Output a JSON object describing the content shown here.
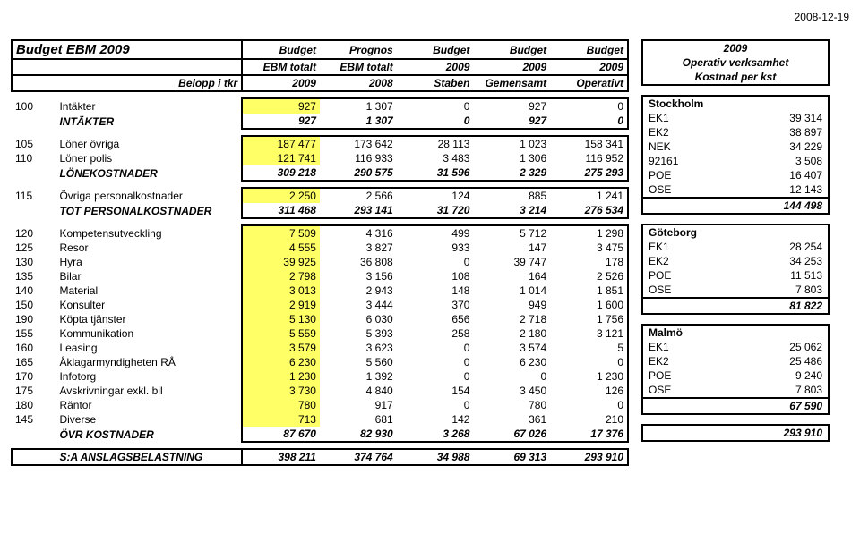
{
  "date": "2008-12-19",
  "main": {
    "header": {
      "title": "Budget EBM 2009",
      "sub": "Belopp i tkr",
      "cols": [
        {
          "l1": "Budget",
          "l2": "EBM totalt",
          "l3": "2009"
        },
        {
          "l1": "Prognos",
          "l2": "EBM totalt",
          "l3": "2008"
        },
        {
          "l1": "Budget",
          "l2": "2009",
          "l3": "Staben"
        },
        {
          "l1": "Budget",
          "l2": "2009",
          "l3": "Gemensamt"
        },
        {
          "l1": "Budget",
          "l2": "2009",
          "l3": "Operativt"
        }
      ]
    },
    "block1": [
      {
        "code": "100",
        "desc": "Intäkter",
        "hl": true,
        "v": [
          "927",
          "1 307",
          "0",
          "927",
          "0"
        ]
      },
      {
        "code": "",
        "desc": "INTÄKTER",
        "bi": true,
        "v": [
          "927",
          "1 307",
          "0",
          "927",
          "0"
        ]
      }
    ],
    "block2": [
      {
        "code": "105",
        "desc": "Löner övriga",
        "hl": true,
        "v": [
          "187 477",
          "173 642",
          "28 113",
          "1 023",
          "158 341"
        ]
      },
      {
        "code": "110",
        "desc": "Löner polis",
        "hl": true,
        "v": [
          "121 741",
          "116 933",
          "3 483",
          "1 306",
          "116 952"
        ]
      },
      {
        "code": "",
        "desc": "LÖNEKOSTNADER",
        "bi": true,
        "v": [
          "309 218",
          "290 575",
          "31 596",
          "2 329",
          "275 293"
        ]
      }
    ],
    "block3": [
      {
        "code": "115",
        "desc": "Övriga personalkostnader",
        "hl": true,
        "v": [
          "2 250",
          "2 566",
          "124",
          "885",
          "1 241"
        ]
      },
      {
        "code": "",
        "desc": "TOT PERSONALKOSTNADER",
        "bi": true,
        "v": [
          "311 468",
          "293 141",
          "31 720",
          "3 214",
          "276 534"
        ]
      }
    ],
    "block4": [
      {
        "code": "120",
        "desc": "Kompetensutveckling",
        "hl": true,
        "v": [
          "7 509",
          "4 316",
          "499",
          "5 712",
          "1 298"
        ]
      },
      {
        "code": "125",
        "desc": "Resor",
        "hl": true,
        "v": [
          "4 555",
          "3 827",
          "933",
          "147",
          "3 475"
        ]
      },
      {
        "code": "130",
        "desc": "Hyra",
        "hl": true,
        "v": [
          "39 925",
          "36 808",
          "0",
          "39 747",
          "178"
        ]
      },
      {
        "code": "135",
        "desc": "Bilar",
        "hl": true,
        "v": [
          "2 798",
          "3 156",
          "108",
          "164",
          "2 526"
        ]
      },
      {
        "code": "140",
        "desc": "Material",
        "hl": true,
        "v": [
          "3 013",
          "2 943",
          "148",
          "1 014",
          "1 851"
        ]
      },
      {
        "code": "150",
        "desc": "Konsulter",
        "hl": true,
        "v": [
          "2 919",
          "3 444",
          "370",
          "949",
          "1 600"
        ]
      },
      {
        "code": "190",
        "desc": "Köpta tjänster",
        "hl": true,
        "v": [
          "5 130",
          "6 030",
          "656",
          "2 718",
          "1 756"
        ]
      },
      {
        "code": "155",
        "desc": "Kommunikation",
        "hl": true,
        "v": [
          "5 559",
          "5 393",
          "258",
          "2 180",
          "3 121"
        ]
      },
      {
        "code": "160",
        "desc": "Leasing",
        "hl": true,
        "v": [
          "3 579",
          "3 623",
          "0",
          "3 574",
          "5"
        ]
      },
      {
        "code": "165",
        "desc": "Åklagarmyndigheten RÅ",
        "hl": true,
        "v": [
          "6 230",
          "5 560",
          "0",
          "6 230",
          "0"
        ]
      },
      {
        "code": "170",
        "desc": "Infotorg",
        "hl": true,
        "v": [
          "1 230",
          "1 392",
          "0",
          "0",
          "1 230"
        ]
      },
      {
        "code": "175",
        "desc": "Avskrivningar exkl. bil",
        "hl": true,
        "v": [
          "3 730",
          "4 840",
          "154",
          "3 450",
          "126"
        ]
      },
      {
        "code": "180",
        "desc": "Räntor",
        "hl": true,
        "v": [
          "780",
          "917",
          "0",
          "780",
          "0"
        ]
      },
      {
        "code": "145",
        "desc": "Diverse",
        "hl": true,
        "v": [
          "713",
          "681",
          "142",
          "361",
          "210"
        ]
      },
      {
        "code": "",
        "desc": "ÖVR KOSTNADER",
        "bi": true,
        "v": [
          "87 670",
          "82 930",
          "3 268",
          "67 026",
          "17 376"
        ]
      }
    ],
    "total": {
      "desc": "S:A ANSLAGSBELASTNING",
      "v": [
        "398 211",
        "374 764",
        "34 988",
        "69 313",
        "293 910"
      ]
    }
  },
  "side": {
    "header": {
      "l1": "2009",
      "l2": "Operativ verksamhet",
      "l3": "Kostnad per kst"
    },
    "groups": [
      {
        "region": "Stockholm",
        "rows": [
          [
            "EK1",
            "39 314"
          ],
          [
            "EK2",
            "38 897"
          ],
          [
            "NEK",
            "34 229"
          ],
          [
            "92161",
            "3 508"
          ],
          [
            "POE",
            "16 407"
          ],
          [
            "OSE",
            "12 143"
          ]
        ],
        "subtotal": "144 498"
      },
      {
        "region": "Göteborg",
        "rows": [
          [
            "EK1",
            "28 254"
          ],
          [
            "EK2",
            "34 253"
          ],
          [
            "POE",
            "11 513"
          ],
          [
            "OSE",
            "7 803"
          ]
        ],
        "subtotal": "81 822"
      },
      {
        "region": "Malmö",
        "rows": [
          [
            "EK1",
            "25 062"
          ],
          [
            "EK2",
            "25 486"
          ],
          [
            "POE",
            "9 240"
          ],
          [
            "OSE",
            "7 803"
          ]
        ],
        "subtotal": "67 590"
      }
    ],
    "total": "293 910"
  }
}
